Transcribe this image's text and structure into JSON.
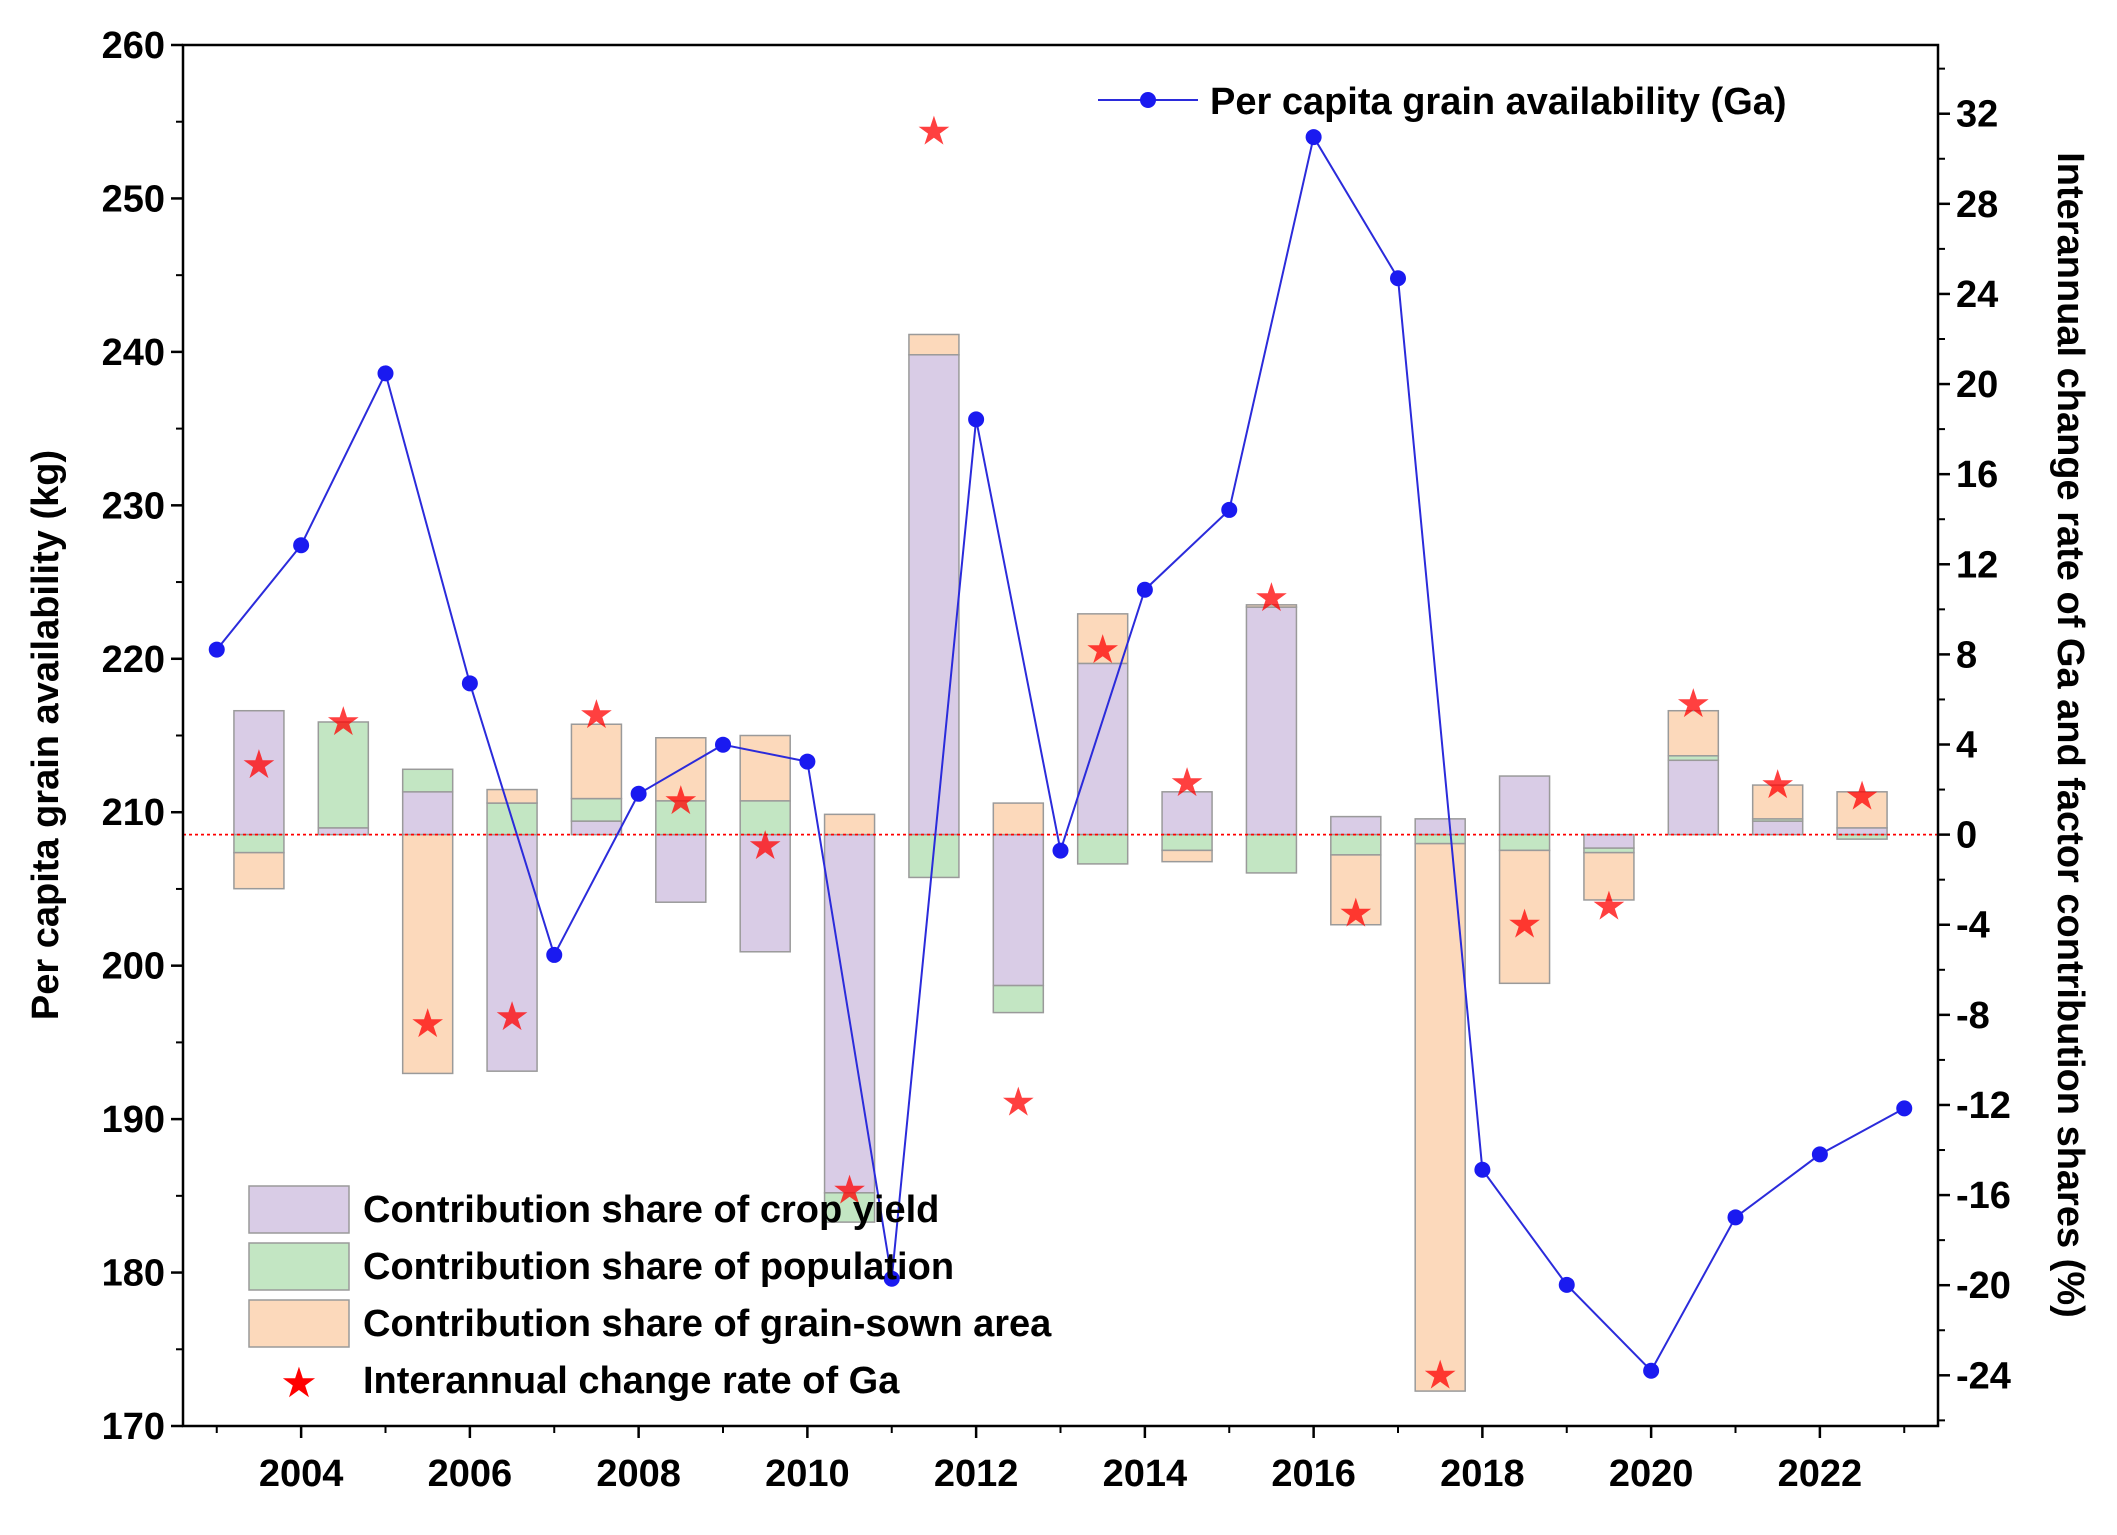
{
  "chart_data": {
    "type": "bar",
    "title": "",
    "xlabel": "",
    "ylabel": "Per capita grain availability (kg)",
    "y2label": "Interannual change rate of Ga and factor contribution shares (%)",
    "ylim": [
      170,
      260
    ],
    "y2lim": [
      -26.25,
      35.05
    ],
    "xlim": [
      2002.6,
      2023.4
    ],
    "x_ticks": [
      "2004",
      "2006",
      "2008",
      "2010",
      "2012",
      "2014",
      "2016",
      "2018",
      "2020",
      "2022"
    ],
    "y_ticks": [
      "170",
      "180",
      "190",
      "200",
      "210",
      "220",
      "230",
      "240",
      "250",
      "260"
    ],
    "y2_ticks": [
      "-24",
      "-20",
      "-16",
      "-12",
      "-8",
      "-4",
      "0",
      "4",
      "8",
      "12",
      "16",
      "20",
      "24",
      "28",
      "32"
    ],
    "colors": {
      "crop_yield": "#d9cce6",
      "population": "#c3e6c3",
      "sown_area": "#fcd9bb",
      "bar_edge": "#9a9a9a",
      "line": "#2b2bdb",
      "marker": "#1a1af0",
      "star": "#ff0000",
      "zero_line": "#ff0000"
    },
    "legend_position": "bottom-left",
    "line_legend_position": "top-right",
    "series": [
      {
        "name": "Per capita grain availability (Ga)",
        "type": "line",
        "axis": "left",
        "x": [
          2003,
          2004,
          2005,
          2006,
          2007,
          2008,
          2009,
          2010,
          2011,
          2012,
          2013,
          2014,
          2015,
          2016,
          2017,
          2018,
          2019,
          2020,
          2021,
          2022,
          2023
        ],
        "values": [
          220.6,
          227.4,
          238.6,
          218.4,
          200.7,
          211.2,
          214.4,
          213.3,
          179.6,
          235.6,
          207.5,
          224.5,
          229.7,
          254.0,
          244.8,
          186.7,
          179.2,
          173.6,
          183.6,
          187.7,
          190.7
        ]
      },
      {
        "name": "Contribution share of crop yield",
        "type": "bar",
        "axis": "right",
        "x": [
          2003.5,
          2004.5,
          2005.5,
          2006.5,
          2007.5,
          2008.5,
          2009.5,
          2010.5,
          2011.5,
          2012.5,
          2013.5,
          2014.5,
          2015.5,
          2016.5,
          2017.5,
          2018.5,
          2019.5,
          2020.5,
          2021.5,
          2022.5
        ],
        "values": [
          5.5,
          0.3,
          1.9,
          -10.5,
          0.6,
          -3.0,
          -5.2,
          -15.9,
          21.3,
          -6.7,
          7.6,
          1.9,
          10.1,
          0.8,
          0.7,
          2.6,
          -0.6,
          3.3,
          0.6,
          0.3
        ]
      },
      {
        "name": "Contribution share of population",
        "type": "bar",
        "axis": "right",
        "x": [
          2003.5,
          2004.5,
          2005.5,
          2006.5,
          2007.5,
          2008.5,
          2009.5,
          2010.5,
          2011.5,
          2012.5,
          2013.5,
          2014.5,
          2015.5,
          2016.5,
          2017.5,
          2018.5,
          2019.5,
          2020.5,
          2021.5,
          2022.5
        ],
        "values": [
          -0.8,
          4.7,
          1.0,
          1.4,
          1.0,
          1.5,
          1.5,
          -1.3,
          -1.9,
          -1.2,
          -1.3,
          -0.7,
          -1.7,
          -0.9,
          -0.4,
          -0.7,
          -0.2,
          0.2,
          0.1,
          -0.2
        ]
      },
      {
        "name": "Contribution share of grain-sown area",
        "type": "bar",
        "axis": "right",
        "x": [
          2003.5,
          2004.5,
          2005.5,
          2006.5,
          2007.5,
          2008.5,
          2009.5,
          2010.5,
          2011.5,
          2012.5,
          2013.5,
          2014.5,
          2015.5,
          2016.5,
          2017.5,
          2018.5,
          2019.5,
          2020.5,
          2021.5,
          2022.5
        ],
        "values": [
          -1.6,
          0.0,
          -10.6,
          0.6,
          3.3,
          2.8,
          2.9,
          0.9,
          0.9,
          1.4,
          2.2,
          -0.5,
          0.1,
          -3.1,
          -24.3,
          -5.9,
          -2.1,
          2.0,
          1.5,
          1.6
        ]
      },
      {
        "name": "Interannual change rate  of Ga",
        "type": "scatter",
        "axis": "right",
        "x": [
          2003.5,
          2004.5,
          2005.5,
          2006.5,
          2007.5,
          2008.5,
          2009.5,
          2010.5,
          2011.5,
          2012.5,
          2013.5,
          2014.5,
          2015.5,
          2016.5,
          2017.5,
          2018.5,
          2019.5,
          2020.5,
          2021.5,
          2022.5
        ],
        "values": [
          3.1,
          5.0,
          -8.4,
          -8.1,
          5.3,
          1.5,
          -0.5,
          -15.8,
          31.2,
          -11.9,
          8.2,
          2.3,
          10.5,
          -3.5,
          -24.0,
          -4.0,
          -3.2,
          5.8,
          2.2,
          1.7
        ]
      }
    ]
  },
  "legend": {
    "line_label": "Per capita grain availability (Ga)",
    "crop_label": "Contribution share of crop yield",
    "population_label": "Contribution share of population",
    "area_label": "Contribution share of grain-sown area",
    "star_label": "Interannual change rate  of Ga"
  }
}
